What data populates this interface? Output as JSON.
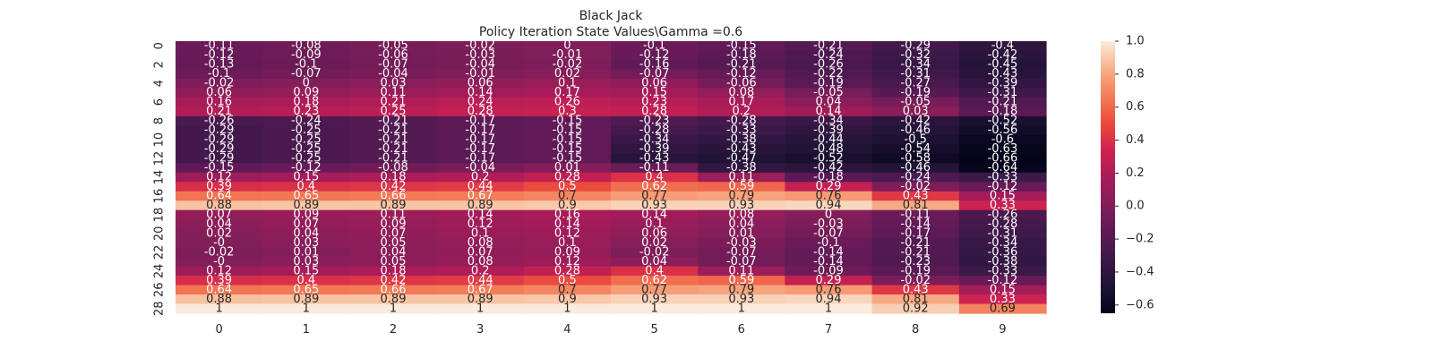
{
  "chart_data": {
    "type": "heatmap",
    "title": "Black Jack",
    "subtitle": "Policy Iteration State Values\\Gamma =0.6",
    "xlabel": "",
    "ylabel": "",
    "x_tick_labels": [
      "0",
      "1",
      "2",
      "3",
      "4",
      "5",
      "6",
      "7",
      "8",
      "9"
    ],
    "y_tick_labels": [
      "0",
      "2",
      "4",
      "6",
      "8",
      "10",
      "12",
      "14",
      "16",
      "18",
      "20",
      "22",
      "24",
      "26",
      "28"
    ],
    "colorbar": {
      "vmin": -0.65,
      "vmax": 1.0,
      "tick_values": [
        1.0,
        0.8,
        0.6,
        0.4,
        0.2,
        0.0,
        -0.2,
        -0.4,
        -0.6
      ],
      "tick_labels": [
        "1.0",
        "0.8",
        "0.6",
        "0.4",
        "0.2",
        "0.0",
        "−0.2",
        "−0.4",
        "−0.6"
      ]
    },
    "rows": [
      [
        "-0.11",
        "-0.08",
        "-0.05",
        "-0.02",
        "0",
        "-0.1",
        "-0.15",
        "-0.21",
        "-0.29",
        "-0.4"
      ],
      [
        "-0.12",
        "-0.09",
        "-0.06",
        "-0.03",
        "-0.01",
        "-0.12",
        "-0.18",
        "-0.24",
        "-0.32",
        "-0.42"
      ],
      [
        "-0.13",
        "-0.1",
        "-0.07",
        "-0.04",
        "-0.02",
        "-0.16",
        "-0.21",
        "-0.26",
        "-0.34",
        "-0.45"
      ],
      [
        "-0.1",
        "-0.07",
        "-0.04",
        "-0.01",
        "0.02",
        "-0.07",
        "-0.12",
        "-0.22",
        "-0.31",
        "-0.43"
      ],
      [
        "-0.02",
        "0",
        "0.03",
        "0.06",
        "0.1",
        "0.06",
        "-0.06",
        "-0.19",
        "-0.27",
        "-0.39"
      ],
      [
        "0.06",
        "0.09",
        "0.11",
        "0.14",
        "0.17",
        "0.15",
        "0.08",
        "-0.05",
        "-0.19",
        "-0.31"
      ],
      [
        "0.16",
        "0.18",
        "0.21",
        "0.24",
        "0.26",
        "0.23",
        "0.17",
        "0.04",
        "-0.05",
        "-0.21"
      ],
      [
        "0.21",
        "0.23",
        "0.25",
        "0.28",
        "0.3",
        "0.28",
        "0.2",
        "0.14",
        "0.03",
        "-0.18"
      ],
      [
        "-0.26",
        "-0.24",
        "-0.21",
        "-0.17",
        "-0.15",
        "-0.23",
        "-0.28",
        "-0.34",
        "-0.42",
        "-0.52"
      ],
      [
        "-0.29",
        "-0.25",
        "-0.21",
        "-0.17",
        "-0.15",
        "-0.28",
        "-0.33",
        "-0.39",
        "-0.46",
        "-0.56"
      ],
      [
        "-0.29",
        "-0.25",
        "-0.21",
        "-0.17",
        "-0.15",
        "-0.34",
        "-0.38",
        "-0.44",
        "-0.5",
        "-0.6"
      ],
      [
        "-0.29",
        "-0.25",
        "-0.21",
        "-0.17",
        "-0.15",
        "-0.39",
        "-0.43",
        "-0.48",
        "-0.54",
        "-0.63"
      ],
      [
        "-0.29",
        "-0.25",
        "-0.21",
        "-0.17",
        "-0.15",
        "-0.43",
        "-0.47",
        "-0.52",
        "-0.58",
        "-0.66"
      ],
      [
        "-0.15",
        "-0.12",
        "-0.08",
        "-0.04",
        "0.01",
        "-0.11",
        "-0.38",
        "-0.42",
        "-0.46",
        "-0.64"
      ],
      [
        "0.12",
        "0.15",
        "0.18",
        "0.2",
        "0.28",
        "0.4",
        "0.11",
        "-0.18",
        "-0.24",
        "-0.33"
      ],
      [
        "0.39",
        "0.4",
        "0.42",
        "0.44",
        "0.5",
        "0.62",
        "0.59",
        "0.29",
        "-0.02",
        "-0.12"
      ],
      [
        "0.64",
        "0.65",
        "0.66",
        "0.67",
        "0.7",
        "0.77",
        "0.79",
        "0.76",
        "0.43",
        "0.15"
      ],
      [
        "0.88",
        "0.89",
        "0.89",
        "0.89",
        "0.9",
        "0.93",
        "0.93",
        "0.94",
        "0.81",
        "0.33"
      ],
      [
        "0.07",
        "0.09",
        "0.11",
        "0.14",
        "0.16",
        "0.14",
        "0.08",
        "0",
        "-0.11",
        "-0.26"
      ],
      [
        "0.04",
        "0.07",
        "0.09",
        "0.12",
        "0.14",
        "0.1",
        "0.04",
        "-0.03",
        "-0.14",
        "-0.28"
      ],
      [
        "0.02",
        "0.04",
        "0.07",
        "0.1",
        "0.12",
        "0.06",
        "0.01",
        "-0.07",
        "-0.17",
        "-0.31"
      ],
      [
        "-0",
        "0.03",
        "0.05",
        "0.08",
        "0.1",
        "0.02",
        "-0.03",
        "-0.1",
        "-0.21",
        "-0.34"
      ],
      [
        "-0.02",
        "0.01",
        "0.04",
        "0.07",
        "0.09",
        "-0.02",
        "-0.07",
        "-0.14",
        "-0.21",
        "-0.36"
      ],
      [
        "-0",
        "0.03",
        "0.05",
        "0.08",
        "0.12",
        "0.04",
        "-0.07",
        "-0.14",
        "-0.23",
        "-0.38"
      ],
      [
        "0.12",
        "0.15",
        "0.18",
        "0.2",
        "0.28",
        "0.4",
        "0.11",
        "-0.09",
        "-0.19",
        "-0.33"
      ],
      [
        "0.39",
        "0.4",
        "0.42",
        "0.44",
        "0.5",
        "0.62",
        "0.59",
        "0.29",
        "-0.02",
        "-0.12"
      ],
      [
        "0.64",
        "0.65",
        "0.66",
        "0.67",
        "0.7",
        "0.77",
        "0.79",
        "0.76",
        "0.43",
        "0.15"
      ],
      [
        "0.88",
        "0.89",
        "0.89",
        "0.89",
        "0.9",
        "0.93",
        "0.93",
        "0.94",
        "0.81",
        "0.33"
      ],
      [
        "1",
        "1",
        "1",
        "1",
        "1",
        "1",
        "1",
        "1",
        "0.92",
        "0.69"
      ]
    ]
  }
}
